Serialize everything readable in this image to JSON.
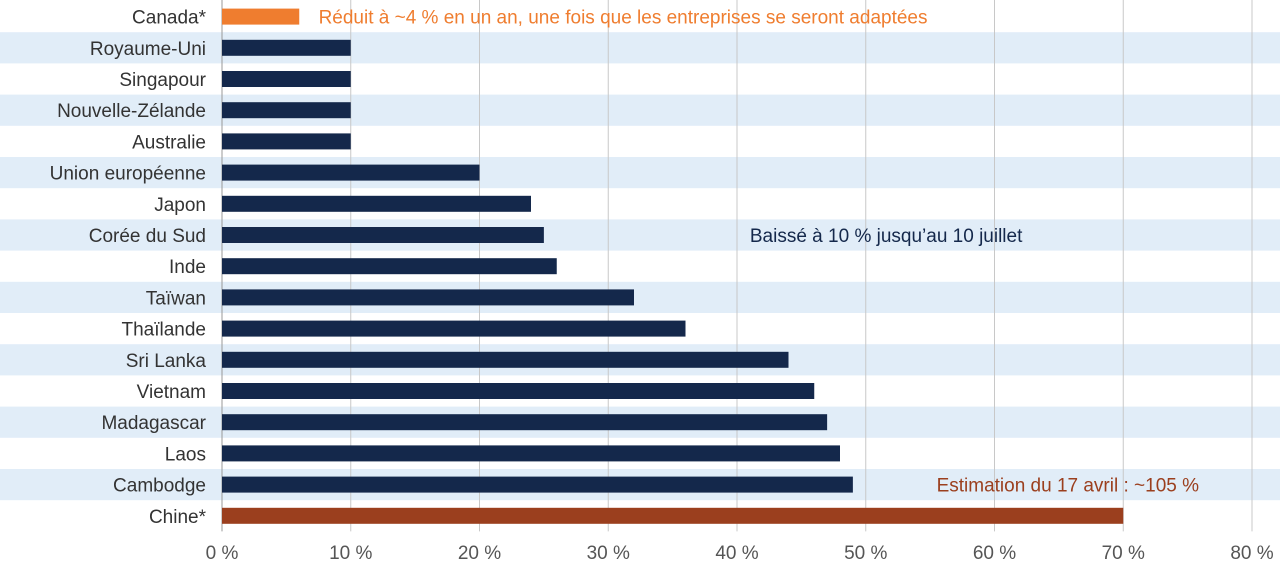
{
  "chart_data": {
    "type": "bar",
    "orientation": "horizontal",
    "categories": [
      "Canada*",
      "Royaume-Uni",
      "Singapour",
      "Nouvelle-Zélande",
      "Australie",
      "Union européenne",
      "Japon",
      "Corée du Sud",
      "Inde",
      "Taïwan",
      "Thaïlande",
      "Sri Lanka",
      "Vietnam",
      "Madagascar",
      "Laos",
      "Cambodge",
      "Chine*"
    ],
    "values": [
      6,
      10,
      10,
      10,
      10,
      20,
      24,
      25,
      26,
      32,
      36,
      44,
      46,
      47,
      48,
      49,
      70
    ],
    "xlim": [
      0,
      80
    ],
    "xticks": [
      0,
      10,
      20,
      30,
      40,
      50,
      60,
      70,
      80
    ],
    "xtick_labels": [
      "0 %",
      "10 %",
      "20 %",
      "30 %",
      "40 %",
      "50 %",
      "60 %",
      "70 %",
      "80 %"
    ],
    "grid": "vertical",
    "row_bands": true,
    "colors": {
      "default_bar": "#14284b",
      "canada_bar": "#ef7d2f",
      "china_bar": "#9b3f1e",
      "band": "#e1edf8",
      "grid": "#c8c8c8",
      "annotation_orange": "#ef7d2f",
      "annotation_navy": "#14284b",
      "annotation_brown": "#9b3f1e"
    },
    "bar_colors": [
      "#ef7d2f",
      "#14284b",
      "#14284b",
      "#14284b",
      "#14284b",
      "#14284b",
      "#14284b",
      "#14284b",
      "#14284b",
      "#14284b",
      "#14284b",
      "#14284b",
      "#14284b",
      "#14284b",
      "#14284b",
      "#14284b",
      "#9b3f1e"
    ],
    "annotations": [
      {
        "text": "Réduit à ~4 % en un an, une fois que les entreprises se seront adaptées",
        "category": "Canada*",
        "x": 7.5,
        "color": "#ef7d2f"
      },
      {
        "text": "Baissé à 10 % jusqu’au 10 juillet",
        "category": "Corée du Sud",
        "x": 41,
        "color": "#14284b"
      },
      {
        "text": "Estimation du 17 avril : ~105 %",
        "category": "Cambodge",
        "x": 55.5,
        "color": "#9b3f1e"
      }
    ],
    "title": "",
    "xlabel": "",
    "ylabel": ""
  }
}
